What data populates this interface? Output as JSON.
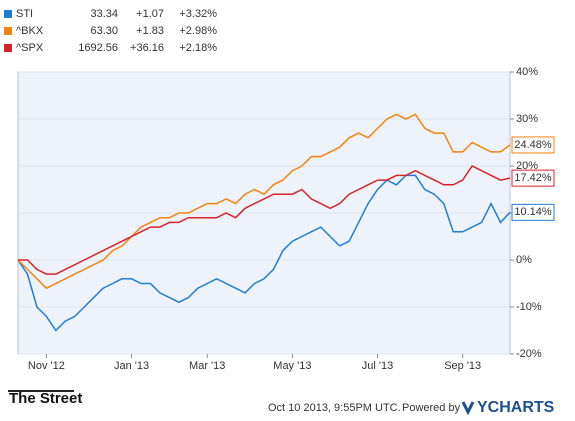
{
  "chart_data": {
    "type": "line",
    "categories": [
      null,
      null,
      null,
      "Nov '12",
      null,
      null,
      null,
      null,
      null,
      null,
      null,
      null,
      "Jan '13",
      null,
      null,
      null,
      null,
      null,
      null,
      null,
      "Mar '13",
      null,
      null,
      null,
      null,
      null,
      null,
      null,
      null,
      "May '13",
      null,
      null,
      null,
      null,
      null,
      null,
      null,
      null,
      "Jul '13",
      null,
      null,
      null,
      null,
      null,
      null,
      null,
      null,
      "Sep '13",
      null,
      null,
      null,
      null,
      null
    ],
    "series": [
      {
        "name": "STI",
        "color": "#1f7ed3",
        "price": "33.34",
        "change": "+1.07",
        "change_pct": "+3.32%",
        "values": [
          0,
          -3,
          -10,
          -12,
          -15,
          -13,
          -12,
          -10,
          -8,
          -6,
          -5,
          -4,
          -4,
          -5,
          -5,
          -7,
          -8,
          -9,
          -8,
          -6,
          -5,
          -4,
          -5,
          -6,
          -7,
          -5,
          -4,
          -2,
          2,
          4,
          5,
          6,
          7,
          5,
          3,
          4,
          8,
          12,
          15,
          17,
          16,
          18,
          18,
          15,
          14,
          12,
          6,
          6,
          7,
          8,
          12,
          8,
          10.14
        ],
        "value_labels": [
          null,
          null,
          null,
          null,
          null,
          null,
          null,
          null,
          null,
          null,
          null,
          null,
          null,
          null,
          null,
          null,
          null,
          null,
          null,
          null,
          null,
          null,
          null,
          null,
          null,
          null,
          null,
          null,
          null,
          null,
          null,
          null,
          null,
          null,
          null,
          null,
          null,
          null,
          null,
          null,
          null,
          null,
          null,
          null,
          null,
          null,
          null,
          null,
          null,
          null,
          null,
          null,
          "10.14%"
        ]
      },
      {
        "name": "^BKX",
        "color": "#f5820f",
        "price": "63.30",
        "change": "+1.83",
        "change_pct": "+2.98%",
        "values": [
          0,
          -2,
          -4,
          -6,
          -5,
          -4,
          -3,
          -2,
          -1,
          0,
          2,
          3,
          5,
          7,
          8,
          9,
          9,
          10,
          10,
          11,
          12,
          12,
          13,
          12,
          14,
          15,
          14,
          16,
          17,
          19,
          20,
          22,
          22,
          23,
          24,
          26,
          27,
          26,
          28,
          30,
          31,
          30,
          31,
          28,
          27,
          27,
          23,
          23,
          25,
          24,
          23,
          23,
          24.48
        ],
        "value_labels": [
          null,
          null,
          null,
          null,
          null,
          null,
          null,
          null,
          null,
          null,
          null,
          null,
          null,
          null,
          null,
          null,
          null,
          null,
          null,
          null,
          null,
          null,
          null,
          null,
          null,
          null,
          null,
          null,
          null,
          null,
          null,
          null,
          null,
          null,
          null,
          null,
          null,
          null,
          null,
          null,
          null,
          null,
          null,
          null,
          null,
          null,
          null,
          null,
          null,
          null,
          null,
          null,
          "24.48%"
        ]
      },
      {
        "name": "^SPX",
        "color": "#d8232a",
        "price": "1692.56",
        "change": "+36.16",
        "change_pct": "+2.18%",
        "values": [
          0,
          0,
          -2,
          -3,
          -3,
          -2,
          -1,
          0,
          1,
          2,
          3,
          4,
          5,
          6,
          7,
          7,
          8,
          8,
          9,
          9,
          9,
          9,
          10,
          9,
          11,
          12,
          13,
          14,
          14,
          14,
          15,
          13,
          12,
          11,
          12,
          14,
          15,
          16,
          17,
          17,
          18,
          18,
          19,
          18,
          17,
          16,
          16,
          17,
          20,
          19,
          18,
          17,
          17.42
        ],
        "value_labels": [
          null,
          null,
          null,
          null,
          null,
          null,
          null,
          null,
          null,
          null,
          null,
          null,
          null,
          null,
          null,
          null,
          null,
          null,
          null,
          null,
          null,
          null,
          null,
          null,
          null,
          null,
          null,
          null,
          null,
          null,
          null,
          null,
          null,
          null,
          null,
          null,
          null,
          null,
          null,
          null,
          null,
          null,
          null,
          null,
          null,
          null,
          null,
          null,
          null,
          null,
          null,
          null,
          "17.42%"
        ]
      }
    ],
    "ylim": [
      -20,
      40
    ],
    "yticks": [
      {
        "value": -20,
        "label": "-20%"
      },
      {
        "value": -10,
        "label": "-10%"
      },
      {
        "value": 0,
        "label": "0%"
      },
      {
        "value": 10,
        "label": "10%"
      },
      {
        "value": 20,
        "label": "20%"
      },
      {
        "value": 30,
        "label": "30%"
      },
      {
        "value": 40,
        "label": "40%"
      }
    ],
    "grid": true,
    "change_color": "#3a9a2a"
  },
  "footer": {
    "source_logo": "The Street",
    "timestamp": "Oct 10 2013, 9:55PM UTC.",
    "powered_by": "Powered by",
    "brand": "YCHARTS"
  }
}
